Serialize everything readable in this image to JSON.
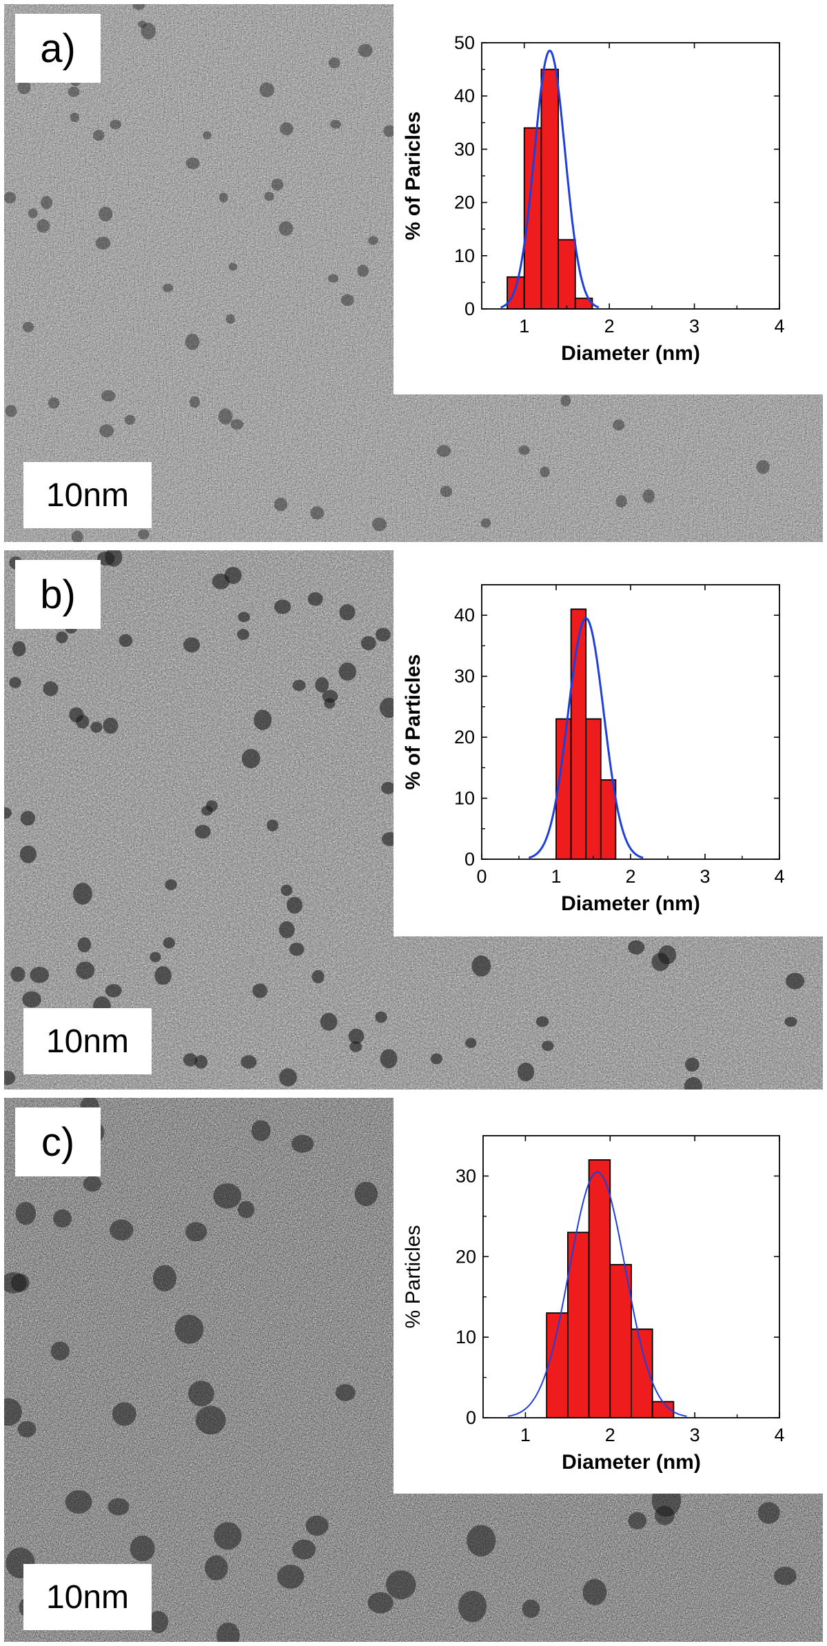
{
  "panels": [
    {
      "label": "a)",
      "scale_bar": "10nm"
    },
    {
      "label": "b)",
      "scale_bar": "10nm"
    },
    {
      "label": "c)",
      "scale_bar": "10nm"
    }
  ],
  "chart_data": [
    {
      "type": "bar",
      "panel": "a)",
      "xlabel": "Diameter (nm)",
      "ylabel": "% of Paricles",
      "xlim": [
        0.5,
        4
      ],
      "ylim": [
        0,
        50
      ],
      "xticks": [
        1,
        2,
        3,
        4
      ],
      "yticks": [
        0,
        10,
        20,
        30,
        40,
        50
      ],
      "bin_width": 0.2,
      "x": [
        0.9,
        1.1,
        1.3,
        1.5,
        1.7,
        1.9
      ],
      "values": [
        6,
        34,
        45,
        13,
        2,
        0
      ],
      "fit": {
        "type": "gaussian",
        "peak": 48.5,
        "center": 1.3,
        "sigma": 0.18,
        "color": "#1f3fdc"
      },
      "bar_color": "#ee1c1c",
      "grid": false,
      "legend": "none",
      "ylabel_bold": true
    },
    {
      "type": "bar",
      "panel": "b)",
      "xlabel": "Diameter (nm)",
      "ylabel": "% of Particles",
      "xlim": [
        0,
        4
      ],
      "ylim": [
        0,
        45
      ],
      "xticks": [
        0,
        1,
        2,
        3,
        4
      ],
      "yticks": [
        0,
        10,
        20,
        30,
        40
      ],
      "bin_width": 0.2,
      "x": [
        1.1,
        1.3,
        1.5,
        1.7,
        1.9
      ],
      "values": [
        23,
        41,
        23,
        13,
        0
      ],
      "fit": {
        "type": "gaussian",
        "peak": 39.5,
        "center": 1.4,
        "sigma": 0.24,
        "color": "#1f3fdc"
      },
      "bar_color": "#ee1c1c",
      "grid": false,
      "legend": "none",
      "ylabel_bold": true
    },
    {
      "type": "bar",
      "panel": "c)",
      "xlabel": "Diameter (nm)",
      "ylabel": "% Particles",
      "xlim": [
        0.5,
        4
      ],
      "ylim": [
        0,
        35
      ],
      "xticks": [
        1,
        2,
        3,
        4
      ],
      "yticks": [
        0,
        10,
        20,
        30
      ],
      "bin_width": 0.25,
      "x": [
        1.375,
        1.625,
        1.875,
        2.125,
        2.375,
        2.625
      ],
      "values": [
        13,
        23,
        32,
        19,
        11,
        2
      ],
      "fit": {
        "type": "gaussian",
        "peak": 30.5,
        "center": 1.85,
        "sigma": 0.33,
        "color": "#1f3fdc"
      },
      "bar_color": "#ee1c1c",
      "grid": false,
      "legend": "none",
      "ylabel_bold": false
    }
  ]
}
